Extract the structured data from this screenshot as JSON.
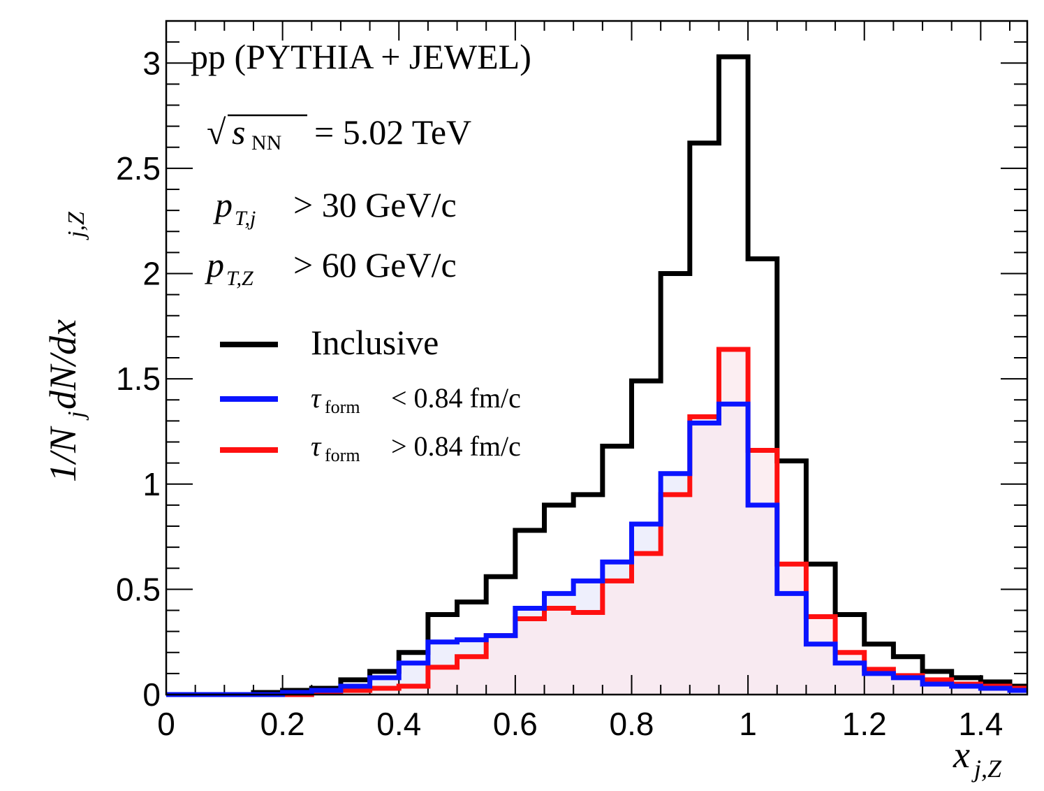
{
  "chart_data": {
    "type": "line",
    "title": "pp (PYTHIA + JEWEL)",
    "annotations": {
      "energy_prefix": "√",
      "energy_var": "s",
      "energy_sub": "NN",
      "energy_value": "= 5.02 TeV",
      "jet_cut_var": "p",
      "jet_cut_sub": "T,j",
      "jet_cut_value": "> 30 GeV/c",
      "z_cut_var": "p",
      "z_cut_sub": "T,Z",
      "z_cut_value": "> 60 GeV/c"
    },
    "xlabel": {
      "var": "x",
      "sub": "j,Z"
    },
    "ylabel": {
      "text": "1/N",
      "sub1": "j",
      "mid": " dN/dx",
      "sub2": "j,Z"
    },
    "xlim": [
      0,
      1.48
    ],
    "ylim": [
      0,
      3.2
    ],
    "x_ticks": [
      "0",
      "0.2",
      "0.4",
      "0.6",
      "0.8",
      "1",
      "1.2",
      "1.4"
    ],
    "x_tick_values": [
      0,
      0.2,
      0.4,
      0.6,
      0.8,
      1.0,
      1.2,
      1.4
    ],
    "y_ticks": [
      "0",
      "0.5",
      "1",
      "1.5",
      "2",
      "2.5",
      "3"
    ],
    "y_tick_values": [
      0,
      0.5,
      1.0,
      1.5,
      2.0,
      2.5,
      3.0
    ],
    "bin_edges": [
      0,
      0.05,
      0.1,
      0.15,
      0.2,
      0.25,
      0.3,
      0.35,
      0.4,
      0.45,
      0.5,
      0.55,
      0.6,
      0.65,
      0.7,
      0.75,
      0.8,
      0.85,
      0.9,
      0.95,
      1.0,
      1.05,
      1.1,
      1.15,
      1.2,
      1.25,
      1.3,
      1.35,
      1.4,
      1.45,
      1.48
    ],
    "series": [
      {
        "name": "Inclusive",
        "color": "#000000",
        "fill": "none",
        "values": [
          0.0,
          0.0,
          0.0,
          0.01,
          0.02,
          0.03,
          0.07,
          0.11,
          0.2,
          0.38,
          0.44,
          0.56,
          0.78,
          0.9,
          0.95,
          1.18,
          1.49,
          2.0,
          2.62,
          3.03,
          2.07,
          1.11,
          0.62,
          0.38,
          0.24,
          0.18,
          0.11,
          0.08,
          0.06,
          0.04
        ]
      },
      {
        "name": "τform < 0.84 fm/c",
        "color": "#0a14ff",
        "fill": "#e8e9fb",
        "values": [
          0.0,
          0.0,
          0.0,
          0.0,
          0.01,
          0.02,
          0.04,
          0.08,
          0.15,
          0.25,
          0.26,
          0.28,
          0.41,
          0.48,
          0.54,
          0.63,
          0.81,
          1.05,
          1.29,
          1.38,
          0.9,
          0.48,
          0.24,
          0.15,
          0.1,
          0.08,
          0.05,
          0.04,
          0.03,
          0.02
        ]
      },
      {
        "name": "τform > 0.84 fm/c",
        "color": "#ff1010",
        "fill": "#fbe8ee",
        "values": [
          0.0,
          0.0,
          0.0,
          0.0,
          0.0,
          0.01,
          0.02,
          0.03,
          0.04,
          0.13,
          0.18,
          0.28,
          0.36,
          0.41,
          0.39,
          0.54,
          0.67,
          0.95,
          1.32,
          1.64,
          1.16,
          0.62,
          0.37,
          0.2,
          0.12,
          0.09,
          0.07,
          0.05,
          0.04,
          0.03
        ]
      }
    ],
    "legend": [
      {
        "label": "Inclusive",
        "color": "#000000"
      },
      {
        "label_var": "τ",
        "label_sub": "form",
        "label_rest": "< 0.84 fm/c",
        "color": "#0a14ff"
      },
      {
        "label_var": "τ",
        "label_sub": "form",
        "label_rest": "> 0.84 fm/c",
        "color": "#ff1010"
      }
    ],
    "legend_position": "top-left",
    "grid": false
  }
}
